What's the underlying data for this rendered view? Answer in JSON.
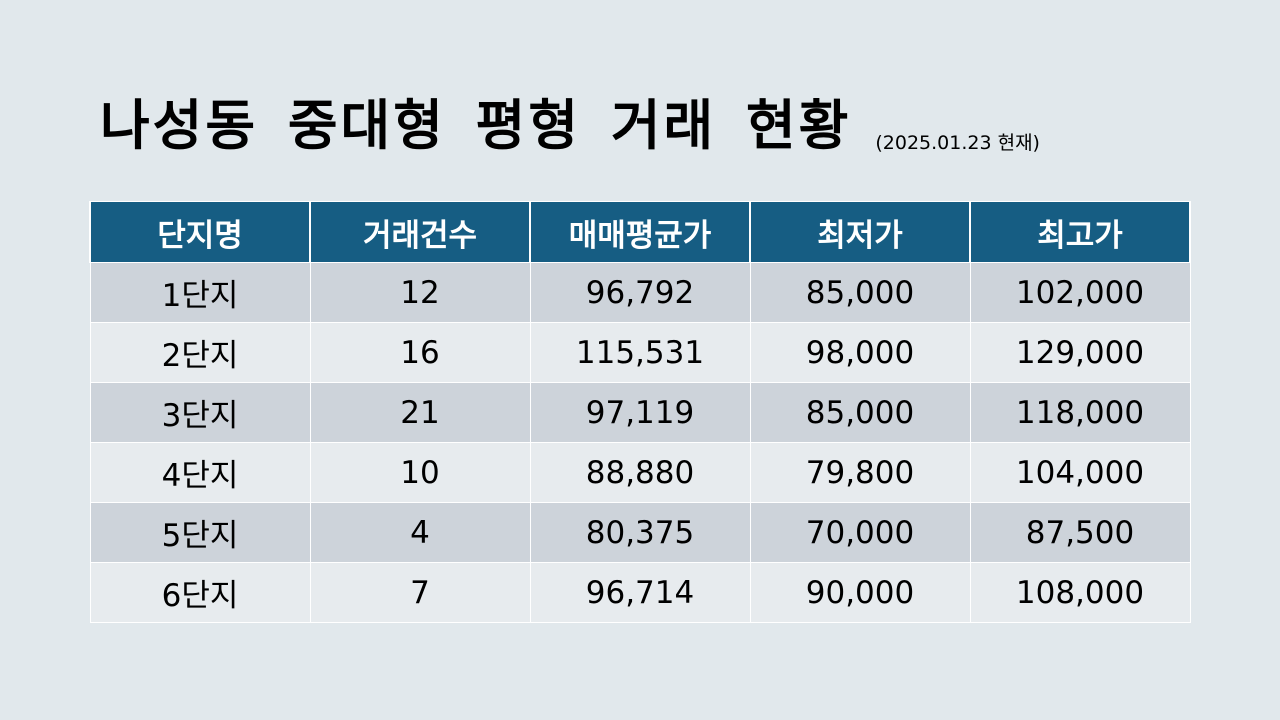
{
  "slide": {
    "title": "나성동 중대형 평형 거래 현황",
    "subtitle": "(2025.01.23 현재)"
  },
  "table": {
    "headers": [
      "단지명",
      "거래건수",
      "매매평균가",
      "최저가",
      "최고가"
    ],
    "rows": [
      [
        "1단지",
        "12",
        "96,792",
        "85,000",
        "102,000"
      ],
      [
        "2단지",
        "16",
        "115,531",
        "98,000",
        "129,000"
      ],
      [
        "3단지",
        "21",
        "97,119",
        "85,000",
        "118,000"
      ],
      [
        "4단지",
        "10",
        "88,880",
        "79,800",
        "104,000"
      ],
      [
        "5단지",
        "4",
        "80,375",
        "70,000",
        "87,500"
      ],
      [
        "6단지",
        "7",
        "96,714",
        "90,000",
        "108,000"
      ]
    ]
  },
  "colors": {
    "background": "#e1e8ec",
    "header_fill": "#165d83",
    "row_band_dark": "#cdd3da",
    "row_band_light": "#e7ebee"
  }
}
